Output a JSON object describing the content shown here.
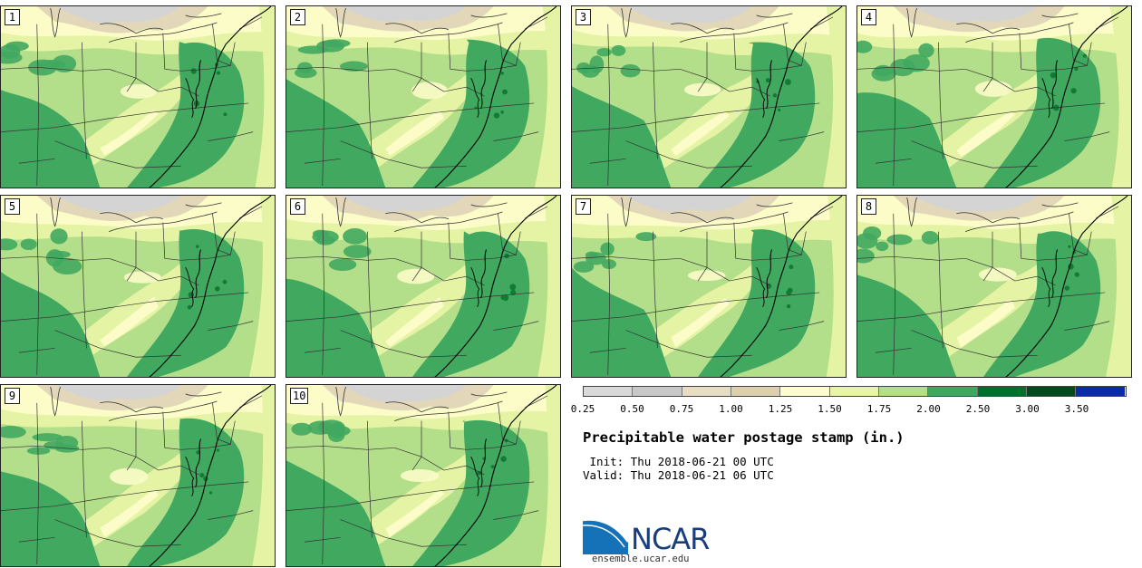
{
  "stamps": [
    {
      "label": "1"
    },
    {
      "label": "2"
    },
    {
      "label": "3"
    },
    {
      "label": "4"
    },
    {
      "label": "5"
    },
    {
      "label": "6"
    },
    {
      "label": "7"
    },
    {
      "label": "8"
    },
    {
      "label": "9"
    },
    {
      "label": "10"
    }
  ],
  "colorbar": {
    "colors": [
      "#d9d9d9",
      "#c8c8c8",
      "#e6ddc3",
      "#ddd0ad",
      "#fdfdd0",
      "#e8f5a8",
      "#b3de8a",
      "#41a85f",
      "#00702d",
      "#004a1e",
      "#0a2aa8"
    ],
    "ticks": [
      "0.25",
      "0.50",
      "0.75",
      "1.00",
      "1.25",
      "1.50",
      "1.75",
      "2.00",
      "2.50",
      "3.00",
      "3.50"
    ]
  },
  "title": "Precipitable water postage stamp (in.)",
  "init_line": " Init: Thu 2018-06-21 00 UTC",
  "valid_line": "Valid: Thu 2018-06-21 06 UTC",
  "logo": {
    "text": "NCAR",
    "url": "ensemble.ucar.edu"
  },
  "map_colors": {
    "gray": "#d4d4d4",
    "tan": "#e2d7b8",
    "light": "#fbfcc8",
    "yellowgreen": "#e5f4a4",
    "mid": "#b3de8a",
    "dark": "#41a85f",
    "darker": "#147a35",
    "border": "#000000",
    "state": "#333333"
  }
}
